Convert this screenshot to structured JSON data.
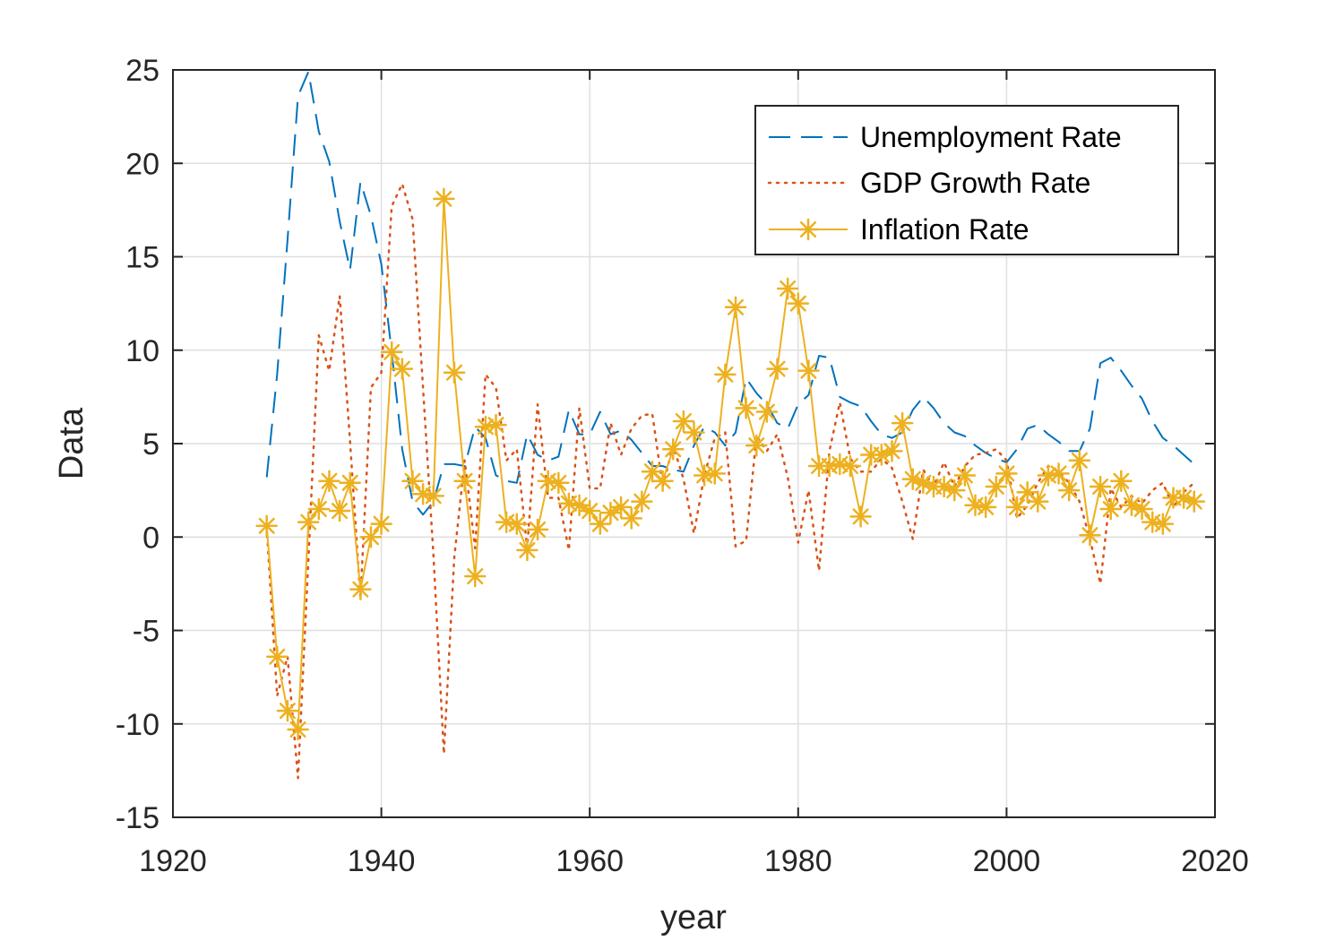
{
  "chart_data": {
    "type": "line",
    "title": "",
    "xlabel": "year",
    "ylabel": "Data",
    "xlim": [
      1920,
      2020
    ],
    "ylim": [
      -15,
      25
    ],
    "xticks": [
      1920,
      1940,
      1960,
      1980,
      2000,
      2020
    ],
    "yticks": [
      -15,
      -10,
      -5,
      0,
      5,
      10,
      15,
      20,
      25
    ],
    "x_tick_labels": [
      "1920",
      "1940",
      "1960",
      "1980",
      "2000",
      "2020"
    ],
    "y_tick_labels": [
      "-15",
      "-10",
      "-5",
      "0",
      "5",
      "10",
      "15",
      "20",
      "25"
    ],
    "grid": true,
    "legend_position": "top-right",
    "colors": {
      "unemployment": "#0072BD",
      "gdp": "#D95319",
      "inflation": "#EDB120",
      "grid": "#dfdfdf",
      "axis": "#262626"
    },
    "series": [
      {
        "name": "Unemployment Rate",
        "style": "dashed",
        "color": "#0072BD",
        "x": [
          1929,
          1930,
          1931,
          1932,
          1933,
          1934,
          1935,
          1936,
          1937,
          1938,
          1939,
          1940,
          1941,
          1942,
          1943,
          1944,
          1945,
          1946,
          1947,
          1948,
          1949,
          1950,
          1951,
          1952,
          1953,
          1954,
          1955,
          1956,
          1957,
          1958,
          1959,
          1960,
          1961,
          1962,
          1963,
          1964,
          1965,
          1966,
          1967,
          1968,
          1969,
          1970,
          1971,
          1972,
          1973,
          1974,
          1975,
          1976,
          1977,
          1978,
          1979,
          1980,
          1981,
          1982,
          1983,
          1984,
          1985,
          1986,
          1987,
          1988,
          1989,
          1990,
          1991,
          1992,
          1993,
          1994,
          1995,
          1996,
          1997,
          1998,
          1999,
          2000,
          2001,
          2002,
          2003,
          2004,
          2005,
          2006,
          2007,
          2008,
          2009,
          2010,
          2011,
          2012,
          2013,
          2014,
          2015,
          2016,
          2017,
          2018
        ],
        "y": [
          3.2,
          8.7,
          15.9,
          23.6,
          24.9,
          21.7,
          20.1,
          16.9,
          14.3,
          19.0,
          17.2,
          14.6,
          9.9,
          4.7,
          1.9,
          1.2,
          1.9,
          3.9,
          3.9,
          3.8,
          5.9,
          5.3,
          3.3,
          3.0,
          2.9,
          5.5,
          4.4,
          4.1,
          4.3,
          6.8,
          5.5,
          5.5,
          6.7,
          5.5,
          5.7,
          5.2,
          4.5,
          3.8,
          3.8,
          3.6,
          3.5,
          4.9,
          5.9,
          5.6,
          4.9,
          5.6,
          8.5,
          7.7,
          7.1,
          6.1,
          5.8,
          7.1,
          7.6,
          9.7,
          9.6,
          7.5,
          7.2,
          7.0,
          6.2,
          5.5,
          5.3,
          5.6,
          6.8,
          7.5,
          6.9,
          6.1,
          5.6,
          5.4,
          4.9,
          4.5,
          4.2,
          4.0,
          4.7,
          5.8,
          6.0,
          5.5,
          5.1,
          4.6,
          4.6,
          5.8,
          9.3,
          9.6,
          8.9,
          8.1,
          7.4,
          6.2,
          5.3,
          4.9,
          4.4,
          3.9
        ]
      },
      {
        "name": "GDP Growth Rate",
        "style": "dotted",
        "color": "#D95319",
        "x": [
          1929,
          1930,
          1931,
          1932,
          1933,
          1934,
          1935,
          1936,
          1937,
          1938,
          1939,
          1940,
          1941,
          1942,
          1943,
          1944,
          1945,
          1946,
          1947,
          1948,
          1949,
          1950,
          1951,
          1952,
          1953,
          1954,
          1955,
          1956,
          1957,
          1958,
          1959,
          1960,
          1961,
          1962,
          1963,
          1964,
          1965,
          1966,
          1967,
          1968,
          1969,
          1970,
          1971,
          1972,
          1973,
          1974,
          1975,
          1976,
          1977,
          1978,
          1979,
          1980,
          1981,
          1982,
          1983,
          1984,
          1985,
          1986,
          1987,
          1988,
          1989,
          1990,
          1991,
          1992,
          1993,
          1994,
          1995,
          1996,
          1997,
          1998,
          1999,
          2000,
          2001,
          2002,
          2003,
          2004,
          2005,
          2006,
          2007,
          2008,
          2009,
          2010,
          2011,
          2012,
          2013,
          2014,
          2015,
          2016,
          2017,
          2018
        ],
        "y": [
          0.5,
          -8.5,
          -6.4,
          -12.9,
          -1.2,
          10.8,
          8.9,
          12.9,
          5.1,
          -3.3,
          8.0,
          8.8,
          17.7,
          18.9,
          17.0,
          8.0,
          -1.0,
          -11.6,
          -1.1,
          4.1,
          -0.6,
          8.7,
          8.0,
          4.1,
          4.7,
          -0.6,
          7.1,
          2.1,
          2.1,
          -0.7,
          6.9,
          2.6,
          2.6,
          6.1,
          4.4,
          5.8,
          6.5,
          6.6,
          2.7,
          4.9,
          3.1,
          0.2,
          3.3,
          5.3,
          5.6,
          -0.5,
          -0.2,
          5.4,
          4.6,
          5.5,
          3.2,
          -0.3,
          2.5,
          -1.8,
          4.6,
          7.2,
          4.2,
          3.5,
          3.5,
          4.2,
          3.7,
          1.9,
          -0.1,
          3.6,
          2.7,
          4.0,
          2.7,
          3.8,
          4.4,
          4.5,
          4.7,
          4.1,
          1.0,
          1.7,
          2.9,
          3.8,
          3.5,
          2.9,
          1.9,
          -0.1,
          -2.5,
          2.6,
          1.6,
          2.2,
          1.8,
          2.5,
          2.9,
          1.6,
          2.4,
          2.9
        ]
      },
      {
        "name": "Inflation Rate",
        "style": "solid-asterisk",
        "color": "#EDB120",
        "x": [
          1929,
          1930,
          1931,
          1932,
          1933,
          1934,
          1935,
          1936,
          1937,
          1938,
          1939,
          1940,
          1941,
          1942,
          1943,
          1944,
          1945,
          1946,
          1947,
          1948,
          1949,
          1950,
          1951,
          1952,
          1953,
          1954,
          1955,
          1956,
          1957,
          1958,
          1959,
          1960,
          1961,
          1962,
          1963,
          1964,
          1965,
          1966,
          1967,
          1968,
          1969,
          1970,
          1971,
          1972,
          1973,
          1974,
          1975,
          1976,
          1977,
          1978,
          1979,
          1980,
          1981,
          1982,
          1983,
          1984,
          1985,
          1986,
          1987,
          1988,
          1989,
          1990,
          1991,
          1992,
          1993,
          1994,
          1995,
          1996,
          1997,
          1998,
          1999,
          2000,
          2001,
          2002,
          2003,
          2004,
          2005,
          2006,
          2007,
          2008,
          2009,
          2010,
          2011,
          2012,
          2013,
          2014,
          2015,
          2016,
          2017,
          2018
        ],
        "y": [
          0.6,
          -6.4,
          -9.3,
          -10.3,
          0.8,
          1.5,
          3.0,
          1.4,
          2.9,
          -2.8,
          0.0,
          0.7,
          9.9,
          9.0,
          3.0,
          2.3,
          2.2,
          18.1,
          8.8,
          3.0,
          -2.1,
          5.9,
          6.0,
          0.8,
          0.7,
          -0.7,
          0.4,
          3.0,
          2.9,
          1.8,
          1.7,
          1.4,
          0.7,
          1.3,
          1.6,
          1.0,
          1.9,
          3.5,
          3.0,
          4.7,
          6.2,
          5.6,
          3.3,
          3.4,
          8.7,
          12.3,
          6.9,
          4.9,
          6.7,
          9.0,
          13.3,
          12.5,
          8.9,
          3.8,
          3.8,
          3.9,
          3.8,
          1.1,
          4.4,
          4.4,
          4.6,
          6.1,
          3.1,
          2.9,
          2.7,
          2.7,
          2.5,
          3.3,
          1.7,
          1.6,
          2.7,
          3.4,
          1.6,
          2.4,
          1.9,
          3.3,
          3.4,
          2.5,
          4.1,
          0.1,
          2.7,
          1.5,
          3.0,
          1.7,
          1.5,
          0.8,
          0.7,
          2.1,
          2.1,
          1.9
        ]
      }
    ]
  }
}
